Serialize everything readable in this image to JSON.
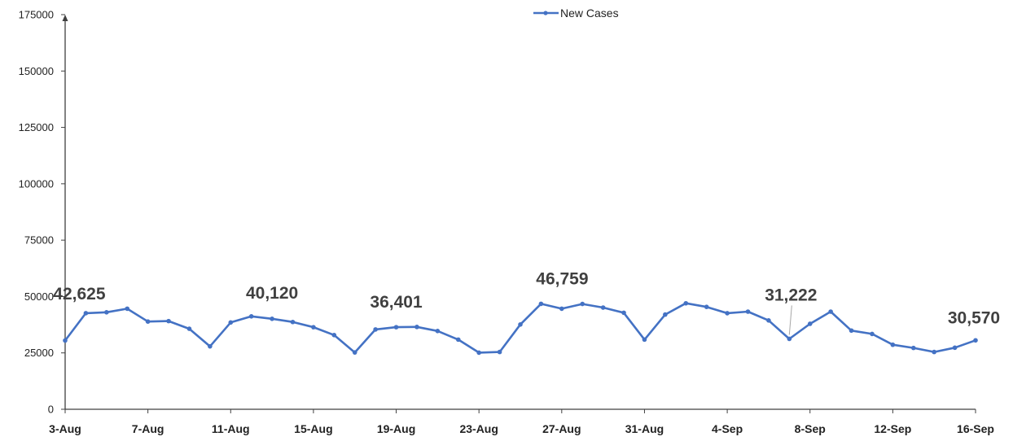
{
  "chart_data": {
    "type": "line",
    "title": "",
    "xlabel": "",
    "ylabel": "",
    "ylim": [
      0,
      175000
    ],
    "y_ticks": [
      0,
      25000,
      50000,
      75000,
      100000,
      125000,
      150000,
      175000
    ],
    "y_tick_labels": [
      "0",
      "25000",
      "50000",
      "75000",
      "100000",
      "125000",
      "150000",
      "175000"
    ],
    "x_tick_labels": [
      "3-Aug",
      "7-Aug",
      "11-Aug",
      "15-Aug",
      "19-Aug",
      "23-Aug",
      "27-Aug",
      "31-Aug",
      "4-Sep",
      "8-Sep",
      "12-Sep",
      "16-Sep"
    ],
    "grid": false,
    "legend": "top-center",
    "series": [
      {
        "name": "New Cases",
        "color": "#4472C4",
        "x": [
          "3-Aug",
          "4-Aug",
          "5-Aug",
          "6-Aug",
          "7-Aug",
          "8-Aug",
          "9-Aug",
          "10-Aug",
          "11-Aug",
          "12-Aug",
          "13-Aug",
          "14-Aug",
          "15-Aug",
          "16-Aug",
          "17-Aug",
          "18-Aug",
          "19-Aug",
          "20-Aug",
          "21-Aug",
          "22-Aug",
          "23-Aug",
          "24-Aug",
          "25-Aug",
          "26-Aug",
          "27-Aug",
          "28-Aug",
          "29-Aug",
          "30-Aug",
          "31-Aug",
          "1-Sep",
          "2-Sep",
          "3-Sep",
          "4-Sep",
          "5-Sep",
          "6-Sep",
          "7-Sep",
          "8-Sep",
          "9-Sep",
          "10-Sep",
          "11-Sep",
          "12-Sep",
          "13-Sep",
          "14-Sep",
          "15-Sep",
          "16-Sep"
        ],
        "values": [
          30500,
          42625,
          43000,
          44600,
          38900,
          39100,
          35700,
          27900,
          38500,
          41200,
          40120,
          38700,
          36400,
          32900,
          25200,
          35400,
          36401,
          36500,
          34700,
          30900,
          25100,
          25400,
          37600,
          46759,
          44600,
          46700,
          45100,
          42800,
          30900,
          42000,
          47000,
          45400,
          42600,
          43300,
          39400,
          31222,
          37900,
          43300,
          34900,
          33400,
          28600,
          27200,
          25400,
          27300,
          30570
        ]
      }
    ],
    "annotations": [
      {
        "x": "4-Aug",
        "label": "42,625"
      },
      {
        "x": "13-Aug",
        "label": "40,120"
      },
      {
        "x": "19-Aug",
        "label": "36,401"
      },
      {
        "x": "26-Aug",
        "label": "46,759"
      },
      {
        "x": "7-Sep",
        "label": "31,222"
      },
      {
        "x": "16-Sep",
        "label": "30,570"
      }
    ]
  }
}
